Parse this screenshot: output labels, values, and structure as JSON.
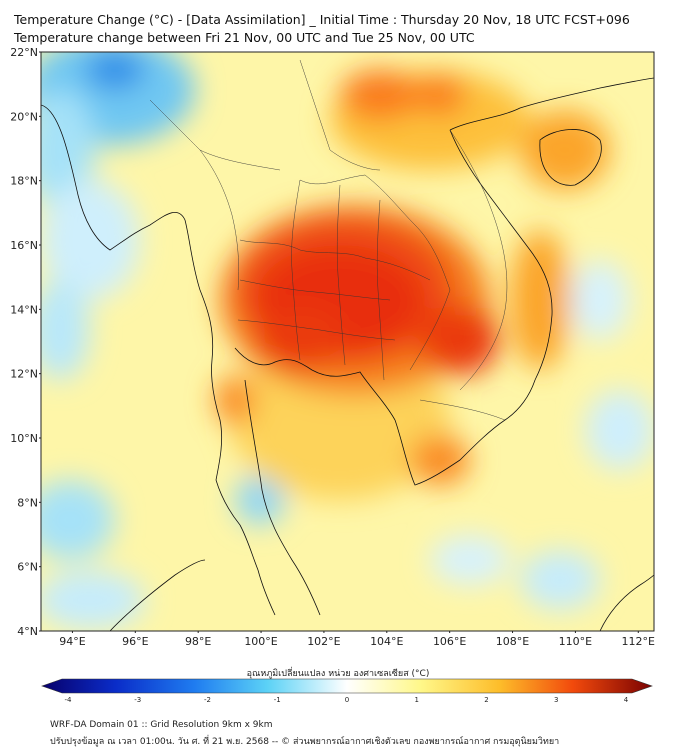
{
  "title_line1": "Temperature Change (°C) - [Data Assimilation] _ Initial Time : Thursday 20 Nov, 18 UTC FCST+096",
  "title_line2": "Temperature change between Fri 21 Nov, 00 UTC and Tue 25 Nov, 00 UTC",
  "lat_labels": [
    "22°N",
    "20°N",
    "18°N",
    "16°N",
    "14°N",
    "12°N",
    "10°N",
    "8°N",
    "6°N",
    "4°N"
  ],
  "lon_labels": [
    "94°E",
    "96°E",
    "98°E",
    "100°E",
    "102°E",
    "104°E",
    "106°E",
    "108°E",
    "110°E",
    "112°E"
  ],
  "colorbar": {
    "label": "อุณหภูมิเปลี่ยนแปลง หน่วย องศาเซลเซียส (°C)",
    "ticks": [
      "-4",
      "-3",
      "-2",
      "-1",
      "0",
      "1",
      "2",
      "3",
      "4"
    ],
    "colors": [
      "#08006b",
      "#0a2cc8",
      "#1f7cf0",
      "#5cd2f6",
      "#ffffff",
      "#fff88a",
      "#fdbd2a",
      "#f24a0c",
      "#7a0202"
    ]
  },
  "footer_line1": "WRF-DA Domain 01 :: Grid Resolution 9km x 9km",
  "footer_line2": "ปรับปรุงข้อมูล ณ เวลา 01:00น. วัน ศ. ที่ 21 พ.ย. 2568 -- © ส่วนพยากรณ์อากาศเชิงตัวเลข กองพยากรณ์อากาศ กรมอุตุนิยมวิทยา"
}
